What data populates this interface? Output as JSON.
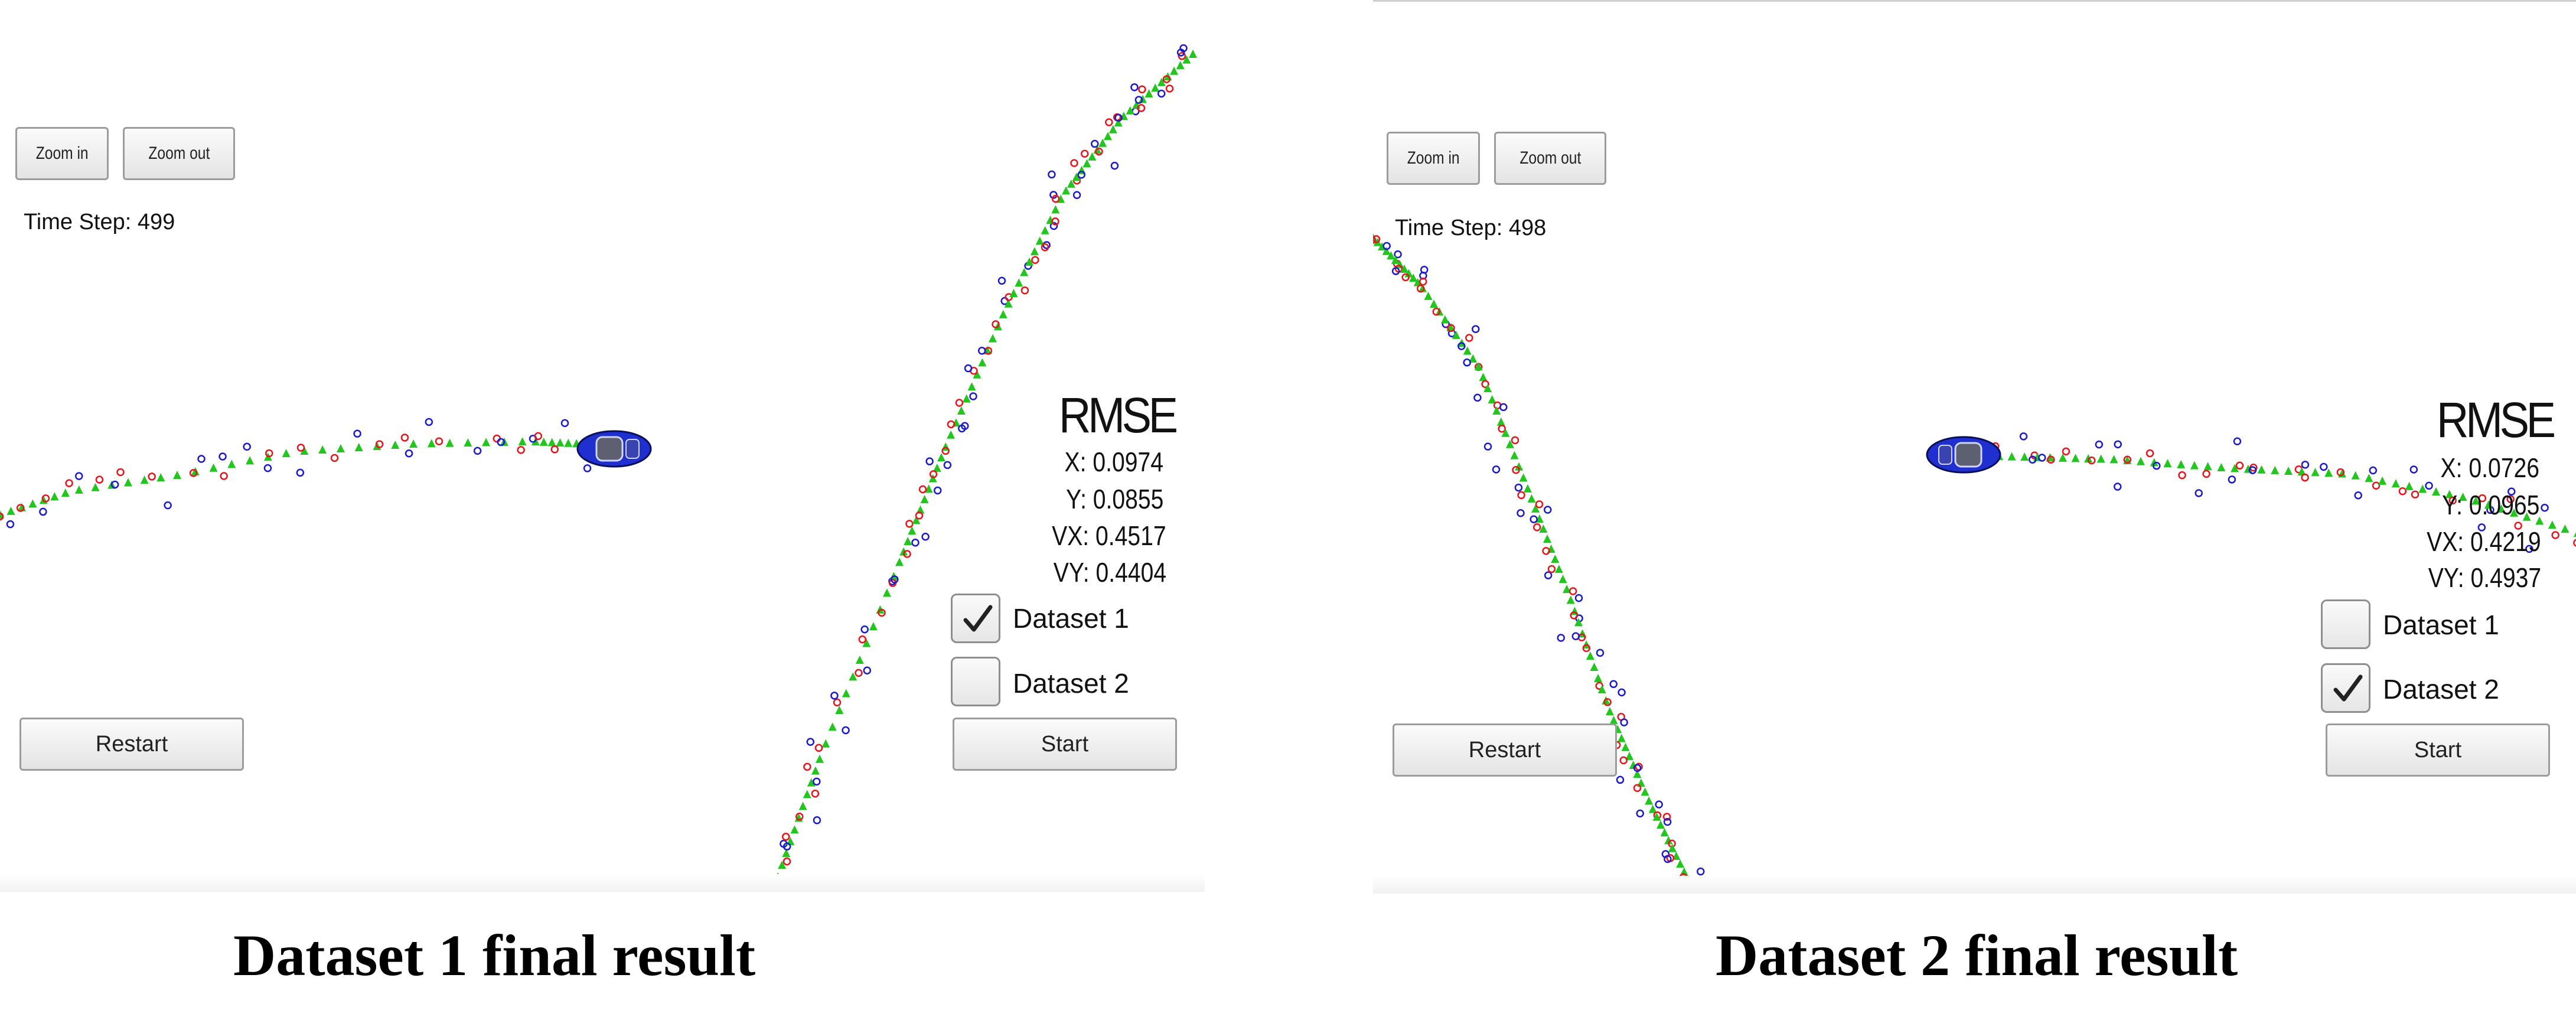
{
  "panels": [
    {
      "zoom_in_label": "Zoom in",
      "zoom_out_label": "Zoom out",
      "time_step": "Time Step: 499",
      "rmse": {
        "title": "RMSE",
        "x": "X: 0.0974",
        "y": "Y: 0.0855",
        "vx": "VX: 0.4517",
        "vy": "VY: 0.4404"
      },
      "dataset1_label": "Dataset 1",
      "dataset1_checked": true,
      "dataset2_label": "Dataset 2",
      "dataset2_checked": false,
      "restart_label": "Restart",
      "start_label": "Start",
      "caption": "Dataset 1 final result"
    },
    {
      "zoom_in_label": "Zoom in",
      "zoom_out_label": "Zoom out",
      "time_step": "Time Step: 498",
      "rmse": {
        "title": "RMSE",
        "x": "X: 0.0726",
        "y": "Y: 0.0965",
        "vx": "VX: 0.4219",
        "vy": "VY: 0.4937"
      },
      "dataset1_label": "Dataset 1",
      "dataset1_checked": false,
      "dataset2_label": "Dataset 2",
      "dataset2_checked": true,
      "restart_label": "Restart",
      "start_label": "Start",
      "caption": "Dataset 2 final result"
    }
  ],
  "colors": {
    "estimate": "#22c61e",
    "lidar": "#e8141c",
    "radar": "#1a1acc",
    "car": "#1f2fd0"
  },
  "icons": [
    "car-icon",
    "check-icon"
  ]
}
